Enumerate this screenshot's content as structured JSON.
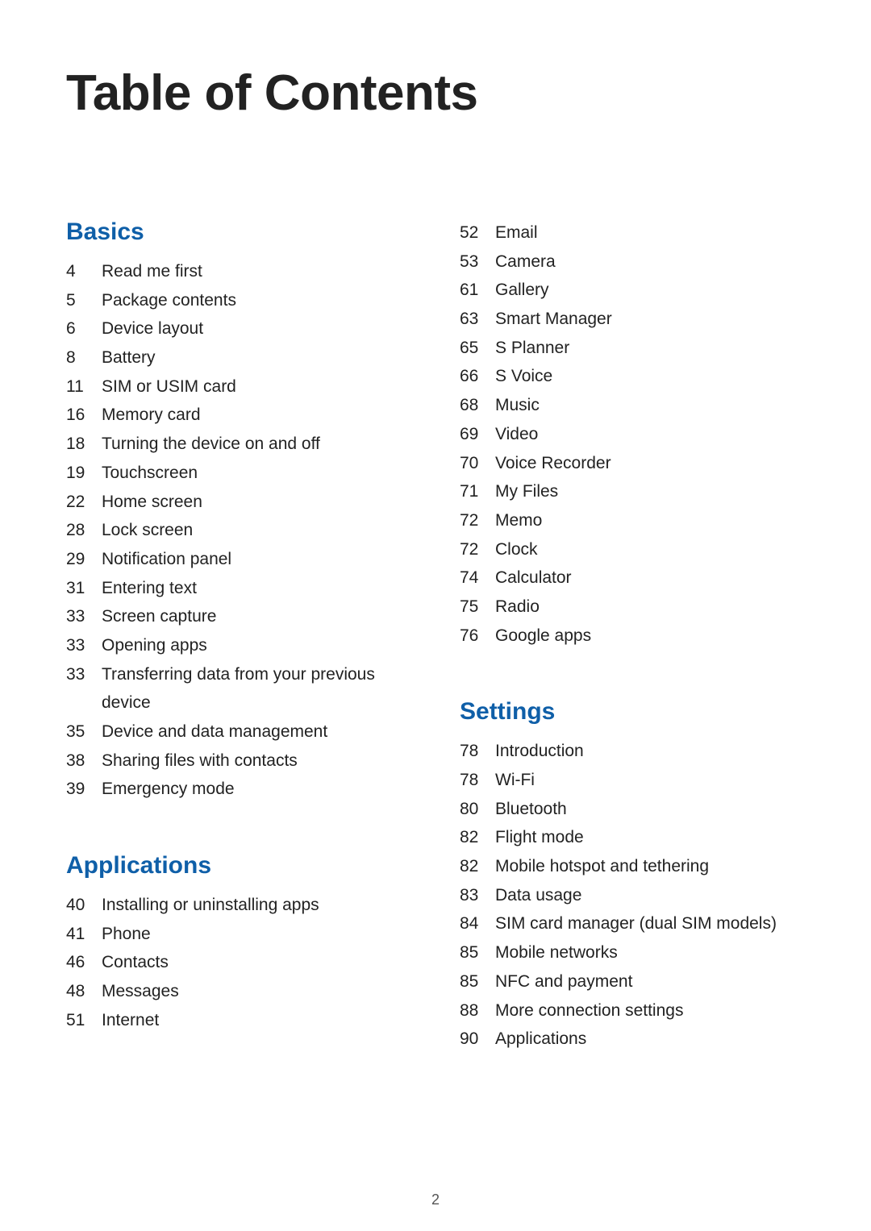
{
  "title": "Table of Contents",
  "footer_page_number": "2",
  "colors": {
    "section_heading": "#0f5fa8",
    "body_text": "#222222",
    "background": "#ffffff"
  },
  "typography": {
    "title_fontsize": 62,
    "section_fontsize": 30,
    "item_fontsize": 21,
    "footer_fontsize": 18
  },
  "sections": {
    "basics": {
      "title": "Basics",
      "items": [
        {
          "page": "4",
          "label": "Read me first"
        },
        {
          "page": "5",
          "label": "Package contents"
        },
        {
          "page": "6",
          "label": "Device layout"
        },
        {
          "page": "8",
          "label": "Battery"
        },
        {
          "page": "11",
          "label": "SIM or USIM card"
        },
        {
          "page": "16",
          "label": "Memory card"
        },
        {
          "page": "18",
          "label": "Turning the device on and off"
        },
        {
          "page": "19",
          "label": "Touchscreen"
        },
        {
          "page": "22",
          "label": "Home screen"
        },
        {
          "page": "28",
          "label": "Lock screen"
        },
        {
          "page": "29",
          "label": "Notification panel"
        },
        {
          "page": "31",
          "label": "Entering text"
        },
        {
          "page": "33",
          "label": "Screen capture"
        },
        {
          "page": "33",
          "label": "Opening apps"
        },
        {
          "page": "33",
          "label": "Transferring data from your previous device"
        },
        {
          "page": "35",
          "label": "Device and data management"
        },
        {
          "page": "38",
          "label": "Sharing files with contacts"
        },
        {
          "page": "39",
          "label": "Emergency mode"
        }
      ]
    },
    "applications": {
      "title": "Applications",
      "items": [
        {
          "page": "40",
          "label": "Installing or uninstalling apps"
        },
        {
          "page": "41",
          "label": "Phone"
        },
        {
          "page": "46",
          "label": "Contacts"
        },
        {
          "page": "48",
          "label": "Messages"
        },
        {
          "page": "51",
          "label": "Internet"
        }
      ]
    },
    "applications_cont": {
      "items": [
        {
          "page": "52",
          "label": "Email"
        },
        {
          "page": "53",
          "label": "Camera"
        },
        {
          "page": "61",
          "label": "Gallery"
        },
        {
          "page": "63",
          "label": "Smart Manager"
        },
        {
          "page": "65",
          "label": "S Planner"
        },
        {
          "page": "66",
          "label": "S Voice"
        },
        {
          "page": "68",
          "label": "Music"
        },
        {
          "page": "69",
          "label": "Video"
        },
        {
          "page": "70",
          "label": "Voice Recorder"
        },
        {
          "page": "71",
          "label": "My Files"
        },
        {
          "page": "72",
          "label": "Memo"
        },
        {
          "page": "72",
          "label": "Clock"
        },
        {
          "page": "74",
          "label": "Calculator"
        },
        {
          "page": "75",
          "label": "Radio"
        },
        {
          "page": "76",
          "label": "Google apps"
        }
      ]
    },
    "settings": {
      "title": "Settings",
      "items": [
        {
          "page": "78",
          "label": "Introduction"
        },
        {
          "page": "78",
          "label": "Wi-Fi"
        },
        {
          "page": "80",
          "label": "Bluetooth"
        },
        {
          "page": "82",
          "label": "Flight mode"
        },
        {
          "page": "82",
          "label": "Mobile hotspot and tethering"
        },
        {
          "page": "83",
          "label": "Data usage"
        },
        {
          "page": "84",
          "label": "SIM card manager (dual SIM models)"
        },
        {
          "page": "85",
          "label": "Mobile networks"
        },
        {
          "page": "85",
          "label": "NFC and payment"
        },
        {
          "page": "88",
          "label": "More connection settings"
        },
        {
          "page": "90",
          "label": "Applications"
        }
      ]
    }
  }
}
